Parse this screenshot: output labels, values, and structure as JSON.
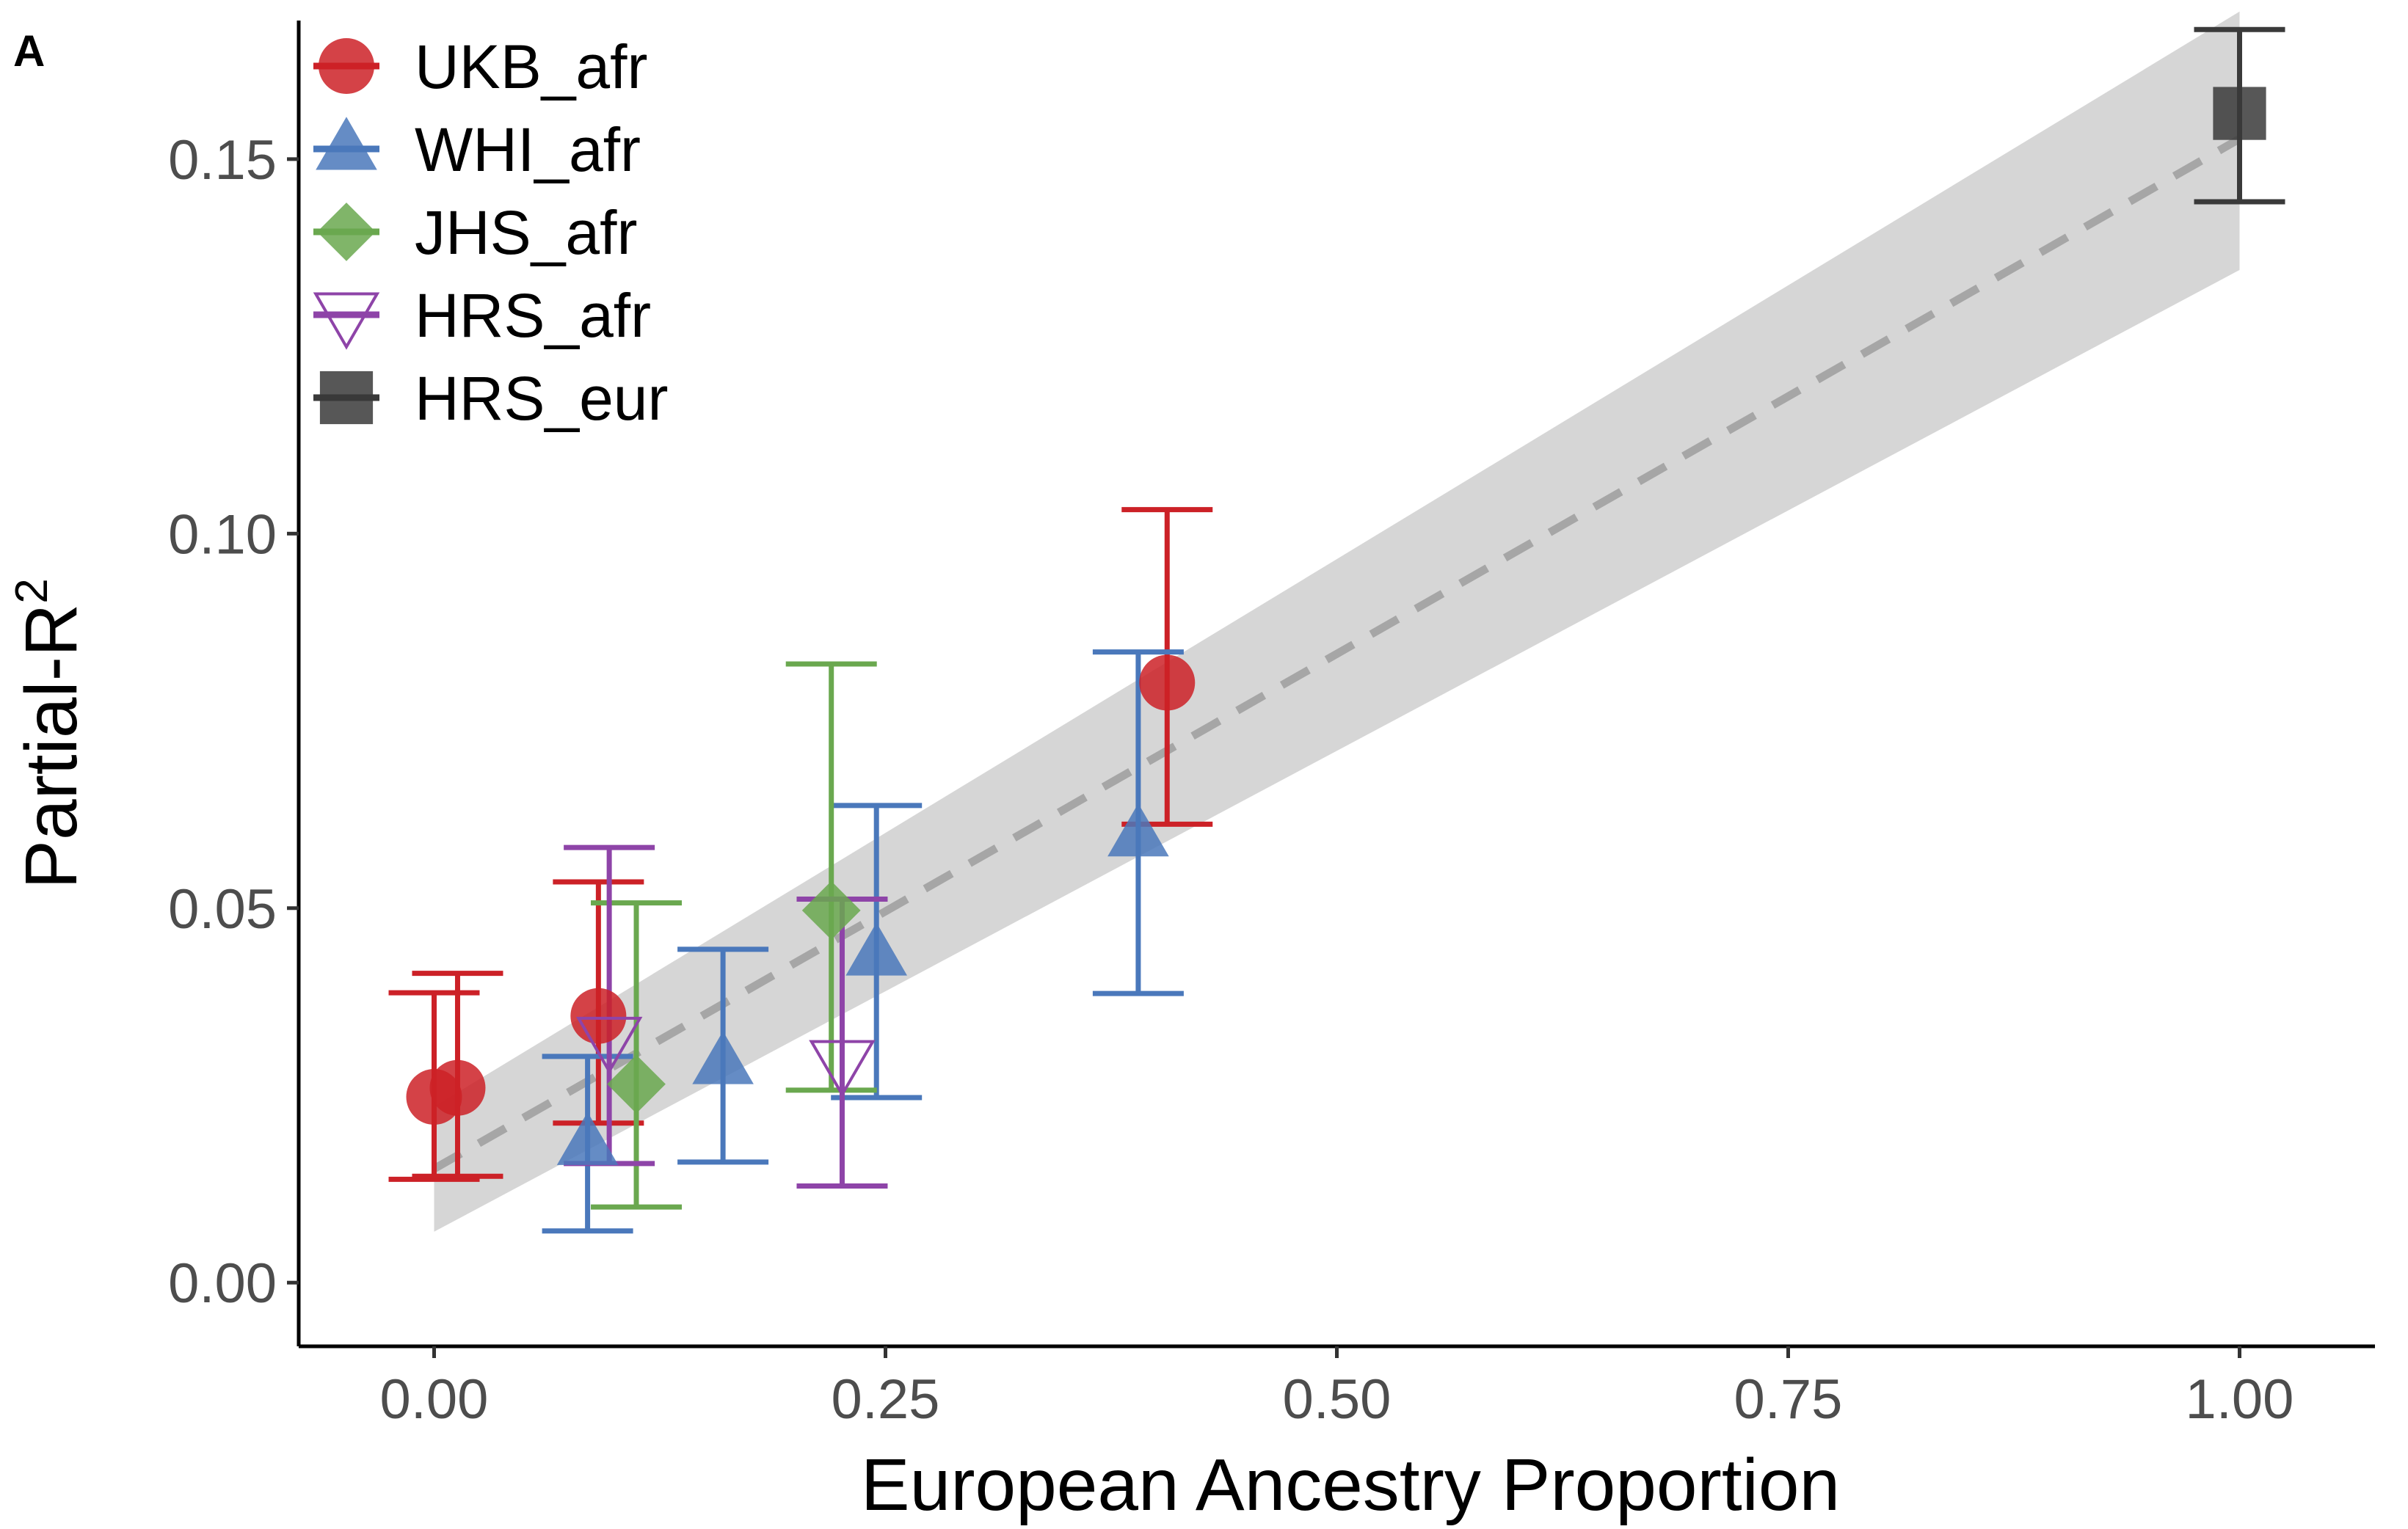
{
  "panel_label": "A",
  "chart_data": {
    "type": "scatter",
    "title": "",
    "xlabel": "European Ancestry Proportion",
    "ylabel": "Partial-R",
    "ylabel_superscript": "2",
    "xlim": [
      -0.075,
      1.075
    ],
    "ylim": [
      -0.0085,
      0.1685
    ],
    "x_ticks": [
      0.0,
      0.25,
      0.5,
      0.75,
      1.0
    ],
    "x_tick_labels": [
      "0.00",
      "0.25",
      "0.50",
      "0.75",
      "1.00"
    ],
    "y_ticks": [
      0.0,
      0.05,
      0.1,
      0.15
    ],
    "y_tick_labels": [
      "0.00",
      "0.05",
      "0.10",
      "0.15"
    ],
    "grid": false,
    "legend_position": "top-left",
    "series": [
      {
        "name": "UKB_afr",
        "color": "#cc2127",
        "marker": "circle",
        "filled": true,
        "points": [
          {
            "x": 0.0,
            "y": 0.0248,
            "ymin": 0.0138,
            "ymax": 0.0387
          },
          {
            "x": 0.013,
            "y": 0.026,
            "ymin": 0.0142,
            "ymax": 0.0413
          },
          {
            "x": 0.091,
            "y": 0.0356,
            "ymin": 0.0213,
            "ymax": 0.0535
          },
          {
            "x": 0.406,
            "y": 0.0801,
            "ymin": 0.0612,
            "ymax": 0.1032
          }
        ]
      },
      {
        "name": "WHI_afr",
        "color": "#4a78bb",
        "marker": "triangle",
        "filled": true,
        "points": [
          {
            "x": 0.085,
            "y": 0.0185,
            "ymin": 0.0069,
            "ymax": 0.0302
          },
          {
            "x": 0.16,
            "y": 0.0293,
            "ymin": 0.0161,
            "ymax": 0.0445
          },
          {
            "x": 0.245,
            "y": 0.0438,
            "ymin": 0.0247,
            "ymax": 0.0637
          },
          {
            "x": 0.39,
            "y": 0.0597,
            "ymin": 0.0386,
            "ymax": 0.0842
          }
        ]
      },
      {
        "name": "JHS_afr",
        "color": "#6aa84f",
        "marker": "diamond",
        "filled": true,
        "points": [
          {
            "x": 0.112,
            "y": 0.0265,
            "ymin": 0.0101,
            "ymax": 0.0507
          },
          {
            "x": 0.22,
            "y": 0.0497,
            "ymin": 0.0257,
            "ymax": 0.0826
          }
        ]
      },
      {
        "name": "HRS_afr",
        "color": "#8e44a8",
        "marker": "triangle-down",
        "filled": false,
        "points": [
          {
            "x": 0.097,
            "y": 0.0325,
            "ymin": 0.0159,
            "ymax": 0.0581
          },
          {
            "x": 0.226,
            "y": 0.0294,
            "ymin": 0.0129,
            "ymax": 0.0512
          }
        ]
      },
      {
        "name": "HRS_eur",
        "color": "#3a3a3a",
        "marker": "square",
        "filled": true,
        "points": [
          {
            "x": 1.0,
            "y": 0.1561,
            "ymin": 0.1443,
            "ymax": 0.1673
          }
        ]
      }
    ],
    "fit": {
      "style": "dashed",
      "color": "#a6a6a6",
      "x": [
        0.0,
        1.0
      ],
      "y": [
        0.0152,
        0.1527
      ],
      "ci_lower": [
        0.0068,
        0.1352
      ],
      "ci_upper": [
        0.0235,
        0.1697
      ],
      "ci_color": "#d6d6d6"
    }
  }
}
